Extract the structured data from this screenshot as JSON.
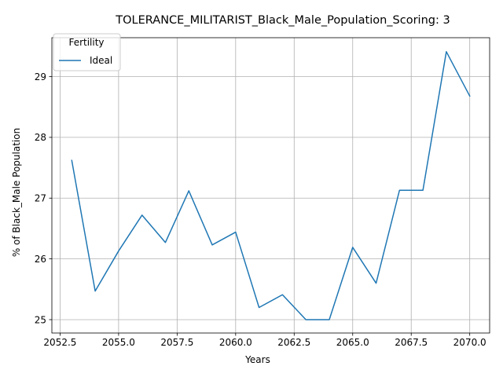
{
  "chart_data": {
    "type": "line",
    "title": "TOLERANCE_MILITARIST_Black_Male_Population_Scoring: 3",
    "xlabel": "Years",
    "ylabel": "% of Black_Male Population",
    "xlim": [
      2052.15,
      2070.85
    ],
    "ylim": [
      24.78,
      29.64
    ],
    "xticks": [
      2052.5,
      2055.0,
      2057.5,
      2060.0,
      2062.5,
      2065.0,
      2067.5,
      2070.0
    ],
    "xtick_labels": [
      "2052.5",
      "2055.0",
      "2057.5",
      "2060.0",
      "2062.5",
      "2065.0",
      "2067.5",
      "2070.0"
    ],
    "yticks": [
      25,
      26,
      27,
      28,
      29
    ],
    "ytick_labels": [
      "25",
      "26",
      "27",
      "28",
      "29"
    ],
    "grid": true,
    "legend": {
      "title": "Fertility",
      "placement": "top-left"
    },
    "series": [
      {
        "name": "Ideal",
        "color": "#1f77b4",
        "x": [
          2053,
          2054,
          2055,
          2056,
          2057,
          2058,
          2059,
          2060,
          2061,
          2062,
          2063,
          2064,
          2065,
          2066,
          2067,
          2068,
          2069,
          2070
        ],
        "y": [
          27.62,
          25.47,
          26.13,
          26.72,
          26.27,
          27.12,
          26.23,
          26.44,
          25.2,
          25.41,
          25.0,
          25.0,
          26.19,
          25.6,
          27.13,
          27.13,
          29.41,
          28.68
        ]
      }
    ]
  }
}
